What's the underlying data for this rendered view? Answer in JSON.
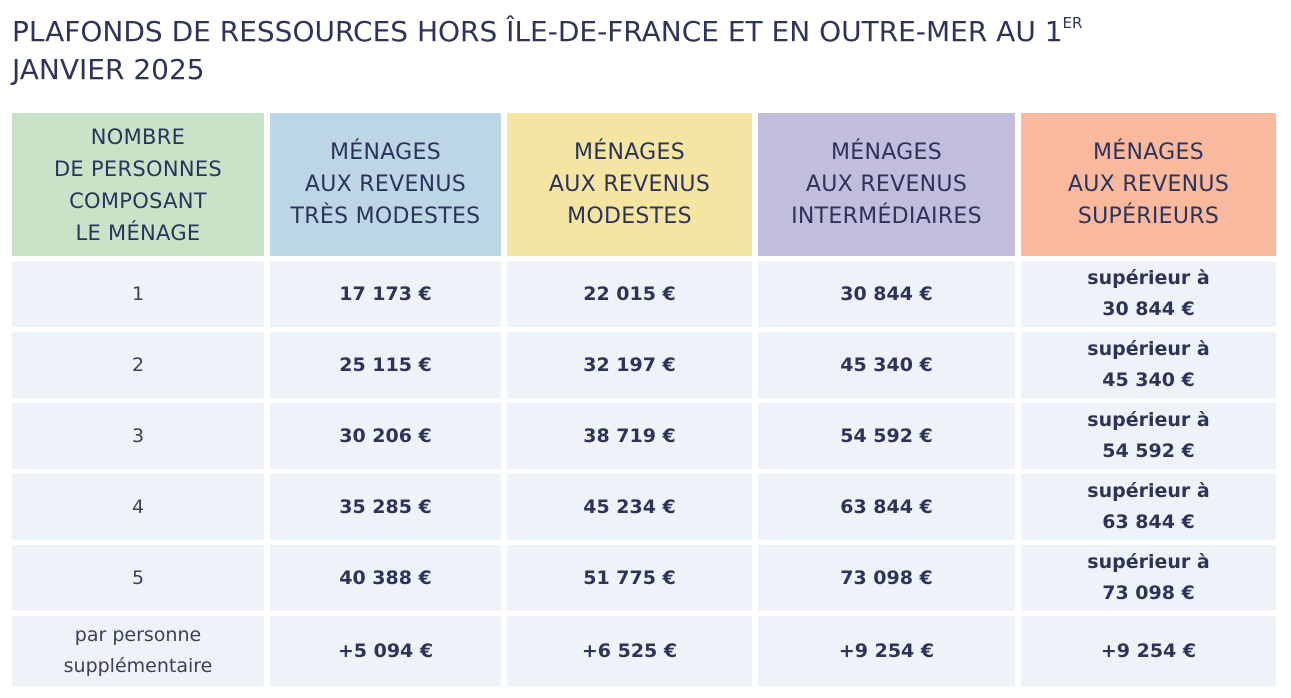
{
  "title": {
    "main": "PLAFONDS DE RESSOURCES HORS ÎLE-DE-FRANCE ET EN OUTRE-MER AU 1",
    "sup": "ER",
    "tail": " JANVIER 2025"
  },
  "colors": {
    "col0": "#c9e3c9",
    "col1": "#bcd6e5",
    "col2": "#f5e5a3",
    "col3": "#c0bddd",
    "col4": "#f8b99f",
    "cell": "#eef3f9",
    "text": "#2d3359"
  },
  "headers": [
    "NOMBRE\nDE PERSONNES\nCOMPOSANT\nLE MÉNAGE",
    "MÉNAGES\nAUX REVENUS\nTRÈS MODESTES",
    "MÉNAGES\nAUX REVENUS\nMODESTES",
    "MÉNAGES\nAUX REVENUS\nINTERMÉDIAIRES",
    "MÉNAGES\nAUX REVENUS\nSUPÉRIEURS"
  ],
  "rows": [
    [
      "1",
      "17 173 €",
      "22 015 €",
      "30 844 €",
      "supérieur à\n30 844 €"
    ],
    [
      "2",
      "25 115 €",
      "32 197 €",
      "45 340 €",
      "supérieur à\n45 340 €"
    ],
    [
      "3",
      "30 206 €",
      "38 719 €",
      "54 592 €",
      "supérieur à\n54 592 €"
    ],
    [
      "4",
      "35 285 €",
      "45 234 €",
      "63 844 €",
      "supérieur à\n63 844 €"
    ],
    [
      "5",
      "40 388 €",
      "51 775 €",
      "73 098 €",
      "supérieur à\n73 098 €"
    ],
    [
      "par personne\nsupplémentaire",
      "+5 094 €",
      "+6 525 €",
      "+9 254 €",
      "+9 254 €"
    ]
  ]
}
